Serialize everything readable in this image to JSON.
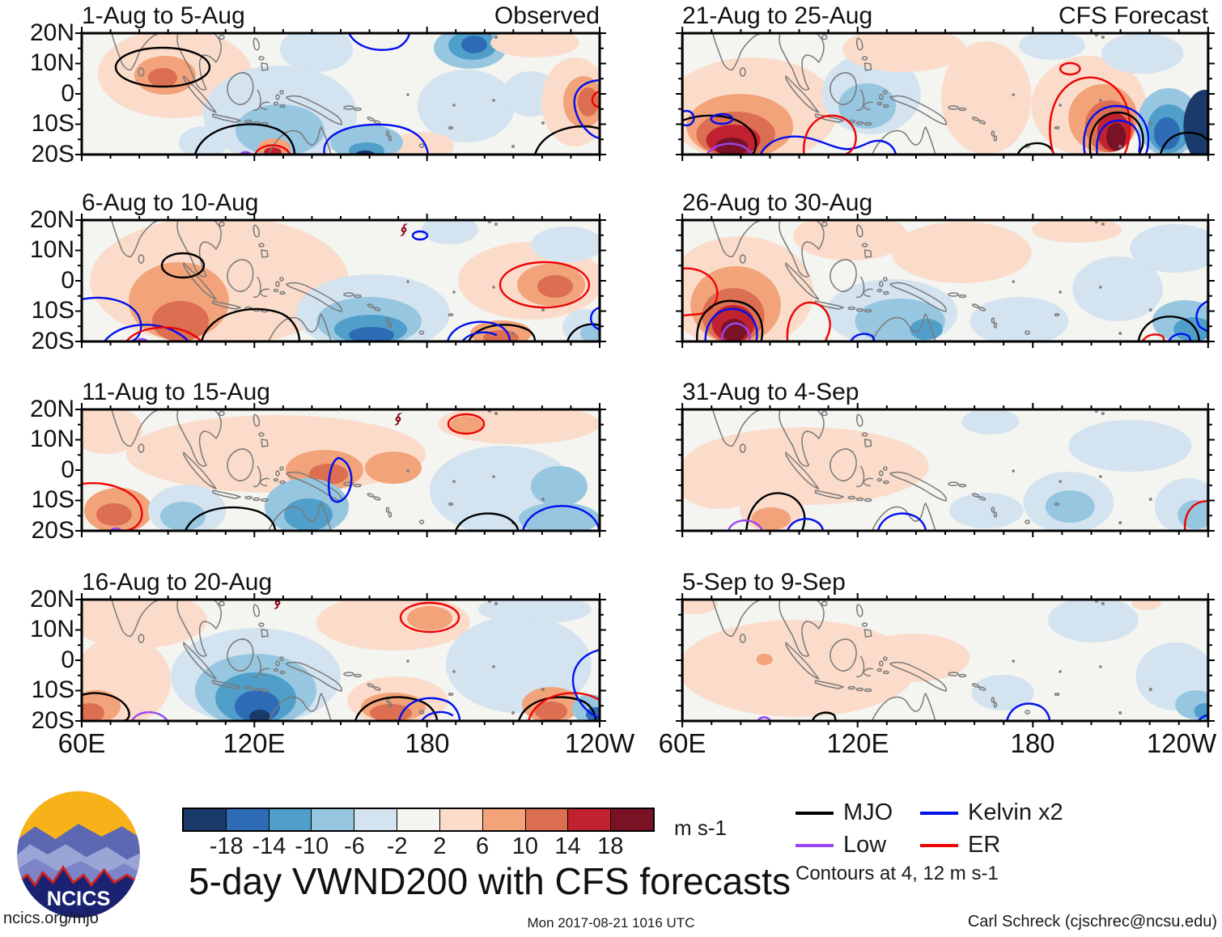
{
  "title": "5-day VWND200 with CFS forecasts",
  "panels": [
    {
      "title": "1-Aug to 5-Aug",
      "corner": "Observed"
    },
    {
      "title": "21-Aug to 25-Aug",
      "corner": "CFS Forecast"
    },
    {
      "title": "6-Aug to 10-Aug",
      "corner": ""
    },
    {
      "title": "26-Aug to 30-Aug",
      "corner": ""
    },
    {
      "title": "11-Aug to 15-Aug",
      "corner": ""
    },
    {
      "title": "31-Aug to 4-Sep",
      "corner": ""
    },
    {
      "title": "16-Aug to 20-Aug",
      "corner": ""
    },
    {
      "title": "5-Sep to 9-Sep",
      "corner": ""
    }
  ],
  "axes": {
    "y": [
      "20N",
      "10N",
      "0",
      "10S",
      "20S"
    ],
    "x": [
      "60E",
      "120E",
      "180",
      "120W"
    ]
  },
  "colorbar": {
    "ticks": [
      "-18",
      "-14",
      "-10",
      "-6",
      "-2",
      "2",
      "6",
      "10",
      "14",
      "18"
    ],
    "colors": [
      "#1a3a6b",
      "#2f6cb6",
      "#4f9fca",
      "#97c6e0",
      "#d3e3f0",
      "#f4f4f0",
      "#fbdccb",
      "#f2a379",
      "#dc6e52",
      "#c0232f",
      "#7a1226"
    ],
    "units": "m s-1"
  },
  "legend": {
    "items": [
      {
        "label": "MJO",
        "color": "#000000"
      },
      {
        "label": "Low",
        "color": "#9b45f2"
      },
      {
        "label": "Kelvin x2",
        "color": "#0010ee"
      },
      {
        "label": "ER",
        "color": "#ee0404"
      }
    ],
    "note": "Contours at 4, 12 m s-1"
  },
  "branding": {
    "logo_text": "NCICS",
    "url": "ncics.org/mjo"
  },
  "footer": {
    "timestamp": "Mon 2017-08-21 1016 UTC",
    "credit": "Carl Schreck (cjschrec@ncsu.edu)"
  },
  "chart_data": {
    "type": "heatmap",
    "title": "5-day VWND200 with CFS forecasts",
    "variable": "200-hPa meridional wind (VWND200), 5-day means",
    "units": "m s-1",
    "fill_levels": [
      -18,
      -14,
      -10,
      -6,
      -2,
      2,
      6,
      10,
      14,
      18
    ],
    "fill_colors": [
      "#1a3a6b",
      "#2f6cb6",
      "#4f9fca",
      "#97c6e0",
      "#d3e3f0",
      "#f4f4f0",
      "#fbdccb",
      "#f2a379",
      "#dc6e52",
      "#c0232f",
      "#7a1226"
    ],
    "line_contour_levels_ms1": [
      4,
      12
    ],
    "overlay_waves": [
      {
        "name": "MJO",
        "color": "#000000"
      },
      {
        "name": "Low",
        "color": "#9b45f2"
      },
      {
        "name": "Kelvin x2",
        "color": "#0010ee"
      },
      {
        "name": "ER",
        "color": "#ee0404"
      }
    ],
    "domain": {
      "lon_range": [
        "60E",
        "120W"
      ],
      "lat_range": [
        "20S",
        "20N"
      ]
    },
    "x_ticks": [
      "60E",
      "120E",
      "180",
      "120W"
    ],
    "y_ticks": [
      "20N",
      "10N",
      "0",
      "10S",
      "20S"
    ],
    "grid_lines": [
      "equator (0 lat)",
      "180 longitude"
    ],
    "panels": [
      {
        "period": "1-Aug to 5-Aug",
        "source": "Observed"
      },
      {
        "period": "21-Aug to 25-Aug",
        "source": "CFS Forecast"
      },
      {
        "period": "6-Aug to 10-Aug",
        "source": "Observed"
      },
      {
        "period": "26-Aug to 30-Aug",
        "source": "CFS Forecast"
      },
      {
        "period": "11-Aug to 15-Aug",
        "source": "Observed"
      },
      {
        "period": "31-Aug to 4-Sep",
        "source": "CFS Forecast"
      },
      {
        "period": "16-Aug to 20-Aug",
        "source": "Observed"
      },
      {
        "period": "5-Sep to 9-Sep",
        "source": "CFS Forecast"
      }
    ]
  }
}
